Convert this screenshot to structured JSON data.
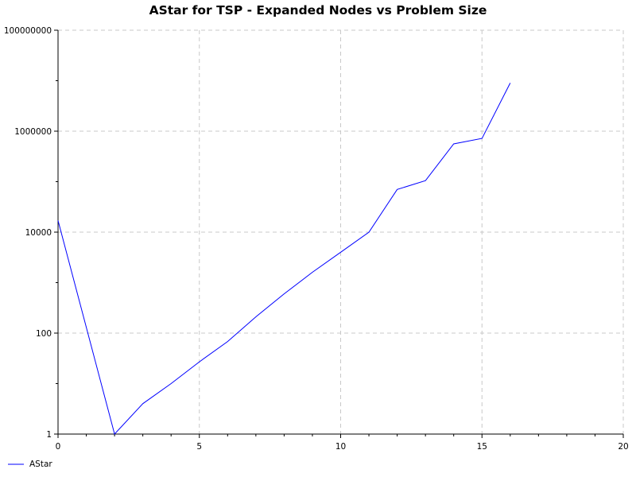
{
  "chart_data": {
    "type": "line",
    "title": "AStar for TSP - Expanded Nodes vs Problem Size",
    "xlabel": "",
    "ylabel": "",
    "xlim": [
      0,
      20
    ],
    "ylim": [
      1,
      100000000
    ],
    "y_scale": "log",
    "grid": true,
    "legend_position": "bottom-left",
    "x_ticks": [
      "0",
      "5",
      "10",
      "15",
      "20"
    ],
    "y_ticks": [
      "1",
      "100",
      "10000",
      "1000000",
      "100000000"
    ],
    "series": [
      {
        "name": "AStar",
        "color": "#0000ff",
        "x": [
          0,
          2,
          3,
          4,
          5,
          6,
          7,
          8,
          9,
          10,
          11,
          12,
          13,
          14,
          15,
          16
        ],
        "y": [
          17000,
          1,
          4,
          10,
          27,
          68,
          210,
          600,
          1600,
          4000,
          10000,
          70000,
          105000,
          560000,
          720000,
          9000000
        ]
      }
    ]
  }
}
